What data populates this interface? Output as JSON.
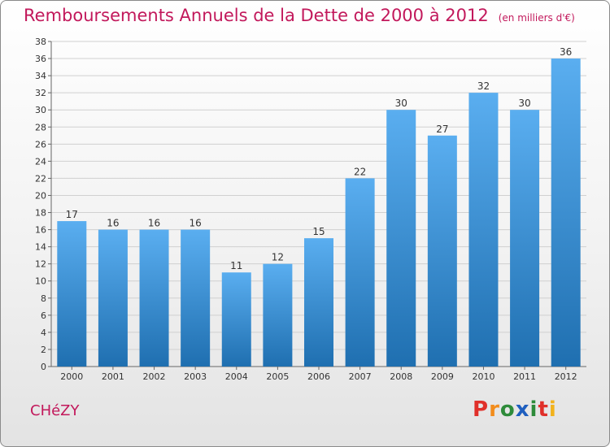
{
  "header": {
    "title": "Remboursements Annuels de la Dette de 2000 à 2012",
    "subtitle": "(en milliers d'€)"
  },
  "footer": {
    "commune": "CHéZY",
    "logo_letters": [
      "P",
      "r",
      "o",
      "x",
      "i",
      "t",
      "i"
    ]
  },
  "colors": {
    "title": "#c2185b",
    "bar_top": "#5aaef0",
    "bar_bottom": "#1f6fb0",
    "grid": "#d0d0d0",
    "logo": [
      "#e0302a",
      "#f28c1c",
      "#2e8b3a",
      "#1f5fbf",
      "#2e8b3a",
      "#e0302a",
      "#f2b21c"
    ]
  },
  "chart_data": {
    "type": "bar",
    "categories": [
      "2000",
      "2001",
      "2002",
      "2003",
      "2004",
      "2005",
      "2006",
      "2007",
      "2008",
      "2009",
      "2010",
      "2011",
      "2012"
    ],
    "values": [
      17,
      16,
      16,
      16,
      11,
      12,
      15,
      22,
      30,
      27,
      32,
      30,
      36
    ],
    "title": "Remboursements Annuels de la Dette de 2000 à 2012",
    "subtitle": "(en milliers d'€)",
    "ylim": [
      0,
      38
    ],
    "y_ticks": [
      0,
      2,
      4,
      6,
      8,
      10,
      12,
      14,
      16,
      18,
      20,
      22,
      24,
      26,
      28,
      30,
      32,
      34,
      36,
      38
    ],
    "grid": "horizontal",
    "data_labels": true
  }
}
